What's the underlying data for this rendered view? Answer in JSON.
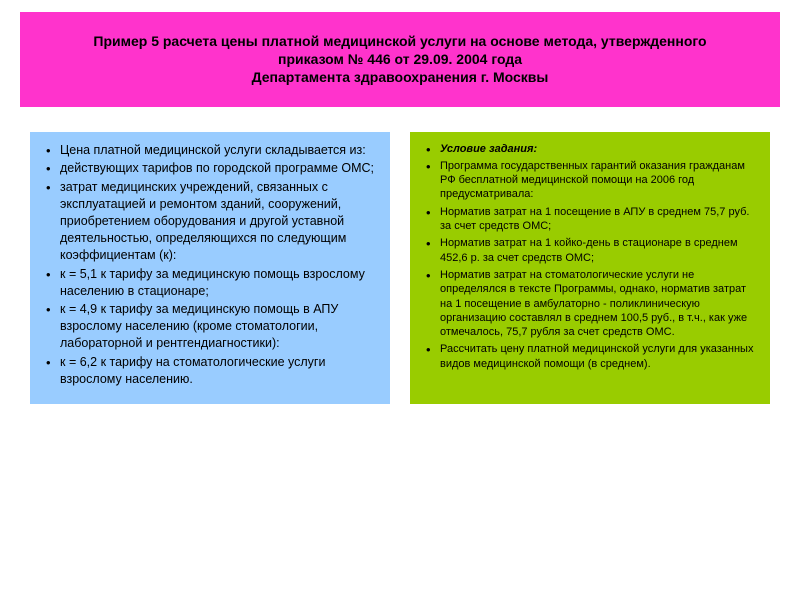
{
  "header": {
    "line1": "Пример 5 расчета цены платной медицинской услуги на основе метода, утвержденного",
    "line2": "приказом № 446 от 29.09. 2004 года",
    "line3": "Департамента здравоохранения г. Москвы"
  },
  "left": {
    "items": [
      "Цена платной медицинской услуги складывается из:",
      "действующих тарифов по городской программе ОМС;",
      "затрат медицинских учреждений, связанных с эксплуатацией и ремонтом зданий, сооружений, приобретением оборудования и другой уставной деятельностью, определяющихся по следующим коэффициентам (к):",
      "к = 5,1 к тарифу за медицинскую помощь взрослому населению в стационаре;",
      "к = 4,9 к тарифу за медицинскую помощь в АПУ взрослому населению (кроме стоматологии, лабораторной и рентгендиагностики):",
      "к = 6,2 к тарифу на стоматологические услуги взрослому населению."
    ]
  },
  "right": {
    "lead": "Условие задания:",
    "items": [
      "Программа государственных гарантий оказания гражданам РФ бесплатной медицинской помощи на 2006 год предусматривала:",
      "Норматив затрат на 1 посещение в АПУ в среднем 75,7 руб. за счет средств ОМС;",
      "Норматив затрат на 1 койко-день в стационаре в среднем 452,6 р. за счет средств ОМС;",
      "Норматив затрат на стоматологические услуги не определялся в тексте Программы, однако, норматив затрат на 1 посещение в амбулаторно - поликлиническую организацию составлял в среднем 100,5 руб., в т.ч., как уже отмечалось, 75,7 рубля за счет средств ОМС.",
      "Рассчитать цену платной медицинской услуги для указанных видов медицинской помощи (в среднем)."
    ]
  },
  "colors": {
    "header_bg": "#ff33cc",
    "left_bg": "#99ccff",
    "right_bg": "#99cc00",
    "text": "#000000"
  }
}
